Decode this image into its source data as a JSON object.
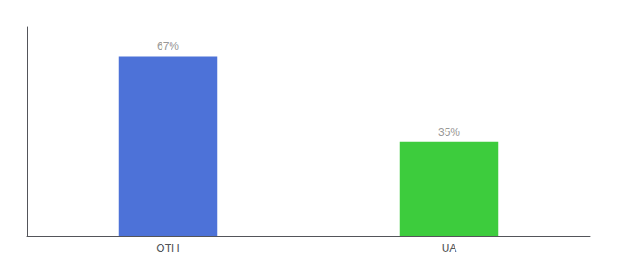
{
  "chart_data": {
    "type": "bar",
    "categories": [
      "OTH",
      "UA"
    ],
    "values": [
      67,
      35
    ],
    "value_labels": [
      "67%",
      "35%"
    ],
    "colors": [
      "#4d72d8",
      "#3dcc3d"
    ],
    "data_labels": true,
    "ylim": [
      0,
      78
    ],
    "tick_labels": "x",
    "grid": false
  }
}
